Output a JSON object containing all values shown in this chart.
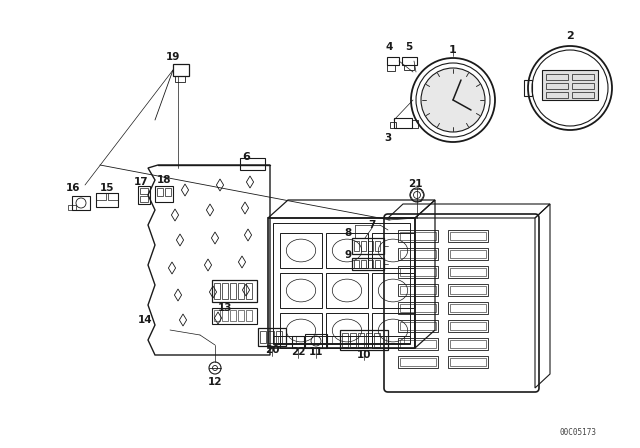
{
  "bg_color": "#ffffff",
  "lc": "#1a1a1a",
  "watermark": "00C05173",
  "fs_label": 7.5,
  "fs_small": 5.5
}
